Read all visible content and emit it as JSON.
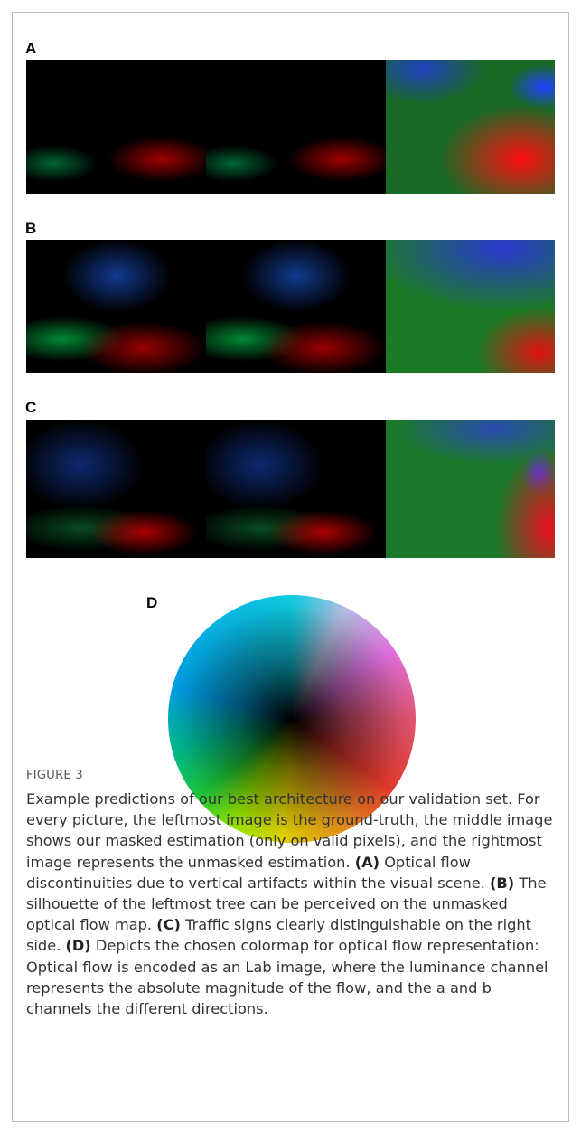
{
  "panels": [
    {
      "label": "A"
    },
    {
      "label": "B"
    },
    {
      "label": "C"
    },
    {
      "label": "D"
    }
  ],
  "figure_label": "FIGURE 3",
  "caption": [
    "Example predictions of our best architecture on our validation set. For every picture, the leftmost image is the ground-truth, the middle image shows our masked estimation (only on valid pixels), and the rightmost image represents the unmasked estimation.",
    "(A)",
    "Optical flow discontinuities due to vertical artifacts within the visual scene.",
    "(B)",
    "The silhouette of the leftmost tree can be perceived on the unmasked optical flow map.",
    "(C)",
    "Traffic signs clearly distinguishable on the right side.",
    "(D)",
    "Depicts the chosen colormap for optical flow representation: Optical flow is encoded as an Lab image, where the luminance channel represents the absolute magnitude of the flow, and the a and b channels the different directions."
  ]
}
